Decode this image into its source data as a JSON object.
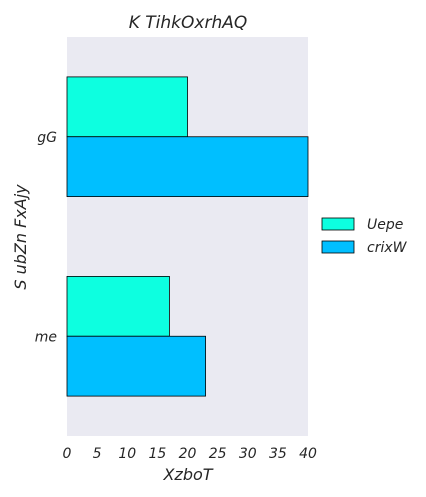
{
  "chart_data": {
    "type": "bar",
    "orientation": "horizontal",
    "title": "K TihkOxrhAQ",
    "xlabel": "XzboT",
    "ylabel": "S ubZn FxAjy",
    "categories": [
      "gG",
      "me"
    ],
    "series": [
      {
        "name": "Uepe",
        "values": [
          20,
          17
        ],
        "color": "#0dffe0"
      },
      {
        "name": "crixW",
        "values": [
          40,
          23
        ],
        "color": "#00bfff"
      }
    ],
    "xlim": [
      0,
      40
    ],
    "xticks": [
      "0",
      "5",
      "10",
      "15",
      "20",
      "25",
      "30",
      "35",
      "40"
    ],
    "grid": false,
    "legend_position": "right",
    "background_color": "#eaeaf2"
  }
}
